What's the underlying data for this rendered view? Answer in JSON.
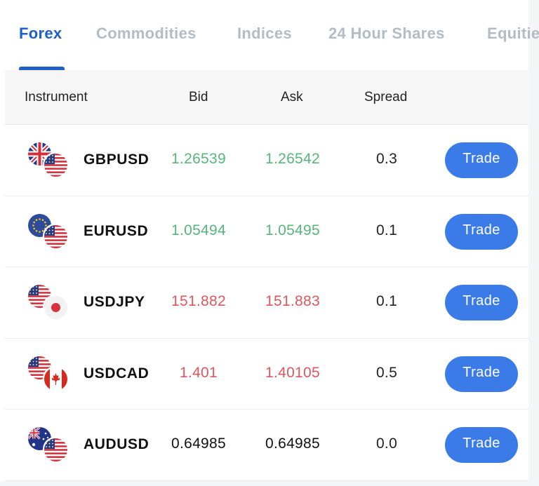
{
  "tabs": [
    {
      "label": "Forex",
      "active": true
    },
    {
      "label": "Commodities",
      "active": false
    },
    {
      "label": "Indices",
      "active": false
    },
    {
      "label": "24 Hour Shares",
      "active": false
    },
    {
      "label": "Equities",
      "active": false
    }
  ],
  "table": {
    "headers": {
      "instrument": "Instrument",
      "bid": "Bid",
      "ask": "Ask",
      "spread": "Spread"
    },
    "rows": [
      {
        "symbol": "GBPUSD",
        "bid": "1.26539",
        "ask": "1.26542",
        "spread": "0.3",
        "direction": "up",
        "flags": [
          "uk-flag-icon",
          "us-flag-icon"
        ],
        "action": "Trade"
      },
      {
        "symbol": "EURUSD",
        "bid": "1.05494",
        "ask": "1.05495",
        "spread": "0.1",
        "direction": "up",
        "flags": [
          "eu-flag-icon",
          "us-flag-icon"
        ],
        "action": "Trade"
      },
      {
        "symbol": "USDJPY",
        "bid": "151.882",
        "ask": "151.883",
        "spread": "0.1",
        "direction": "down",
        "flags": [
          "us-flag-icon",
          "japan-flag-icon"
        ],
        "action": "Trade"
      },
      {
        "symbol": "USDCAD",
        "bid": "1.401",
        "ask": "1.40105",
        "spread": "0.5",
        "direction": "down",
        "flags": [
          "us-flag-icon",
          "canada-flag-icon"
        ],
        "action": "Trade"
      },
      {
        "symbol": "AUDUSD",
        "bid": "0.64985",
        "ask": "0.64985",
        "spread": "0.0",
        "direction": "flat",
        "flags": [
          "australia-flag-icon",
          "us-flag-icon"
        ],
        "action": "Trade"
      }
    ]
  },
  "colors": {
    "accent": "#1f5fc9",
    "button": "#3b7be8",
    "up": "#56b679",
    "down": "#e0565c",
    "inactive_tab": "#b2bcc5"
  }
}
